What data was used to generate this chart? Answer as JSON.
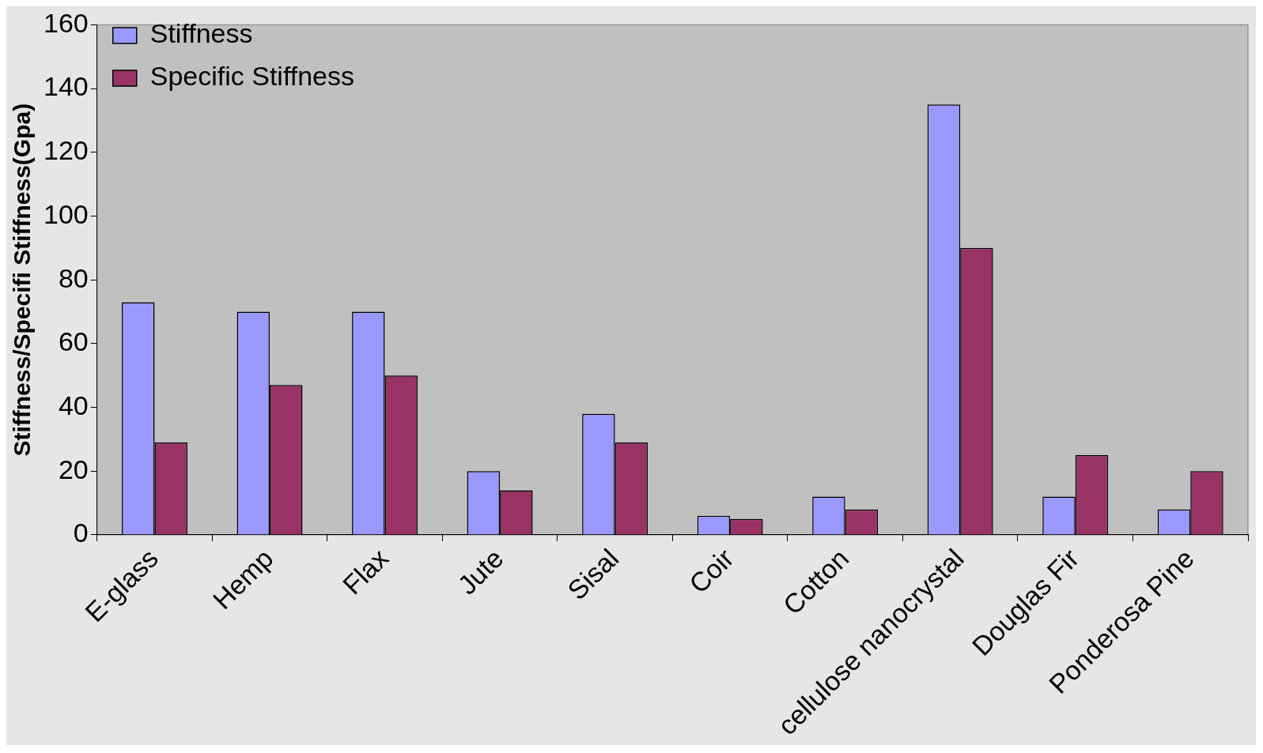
{
  "chart_data": {
    "type": "bar",
    "ylabel": "Stiffness/Specifi Stiffness(Gpa)",
    "categories": [
      "E-glass",
      "Hemp",
      "Flax",
      "Jute",
      "Sisal",
      "Coir",
      "Cotton",
      "cellulose nanocrystal",
      "Douglas Fir",
      "Ponderosa Pine"
    ],
    "series": [
      {
        "name": "Stiffness",
        "color": "#9999ff",
        "values": [
          73,
          70,
          70,
          20,
          38,
          6,
          12,
          135,
          12,
          8
        ]
      },
      {
        "name": "Specific Stiffness",
        "color": "#993366",
        "values": [
          29,
          47,
          50,
          14,
          29,
          5,
          8,
          90,
          25,
          20
        ]
      }
    ],
    "ylim": [
      0,
      160
    ],
    "yticks": [
      0,
      20,
      40,
      60,
      80,
      100,
      120,
      140,
      160
    ],
    "grid": false,
    "legend": "top left"
  }
}
